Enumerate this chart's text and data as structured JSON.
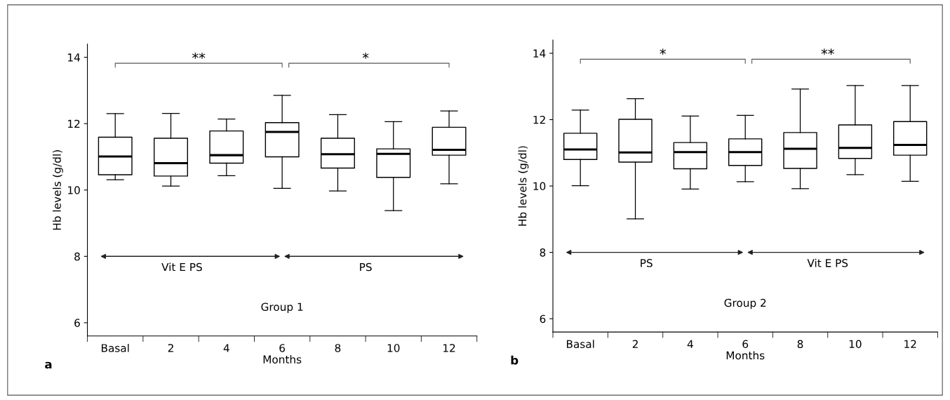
{
  "chart_data": [
    {
      "type": "box",
      "xlabel": "Months",
      "ylabel": "Hb levels (g/dl)",
      "categories": [
        "Basal",
        "2",
        "4",
        "6",
        "8",
        "10",
        "12"
      ],
      "ylim": [
        5.6,
        14.4
      ],
      "yticks": [
        6,
        8,
        10,
        12,
        14
      ],
      "grid": false,
      "boxes": [
        {
          "low": 10.31,
          "q1": 10.46,
          "median": 11.01,
          "q3": 11.59,
          "high": 12.3
        },
        {
          "low": 10.12,
          "q1": 10.42,
          "median": 10.81,
          "q3": 11.56,
          "high": 12.31
        },
        {
          "low": 10.43,
          "q1": 10.81,
          "median": 11.05,
          "q3": 11.78,
          "high": 12.14
        },
        {
          "low": 10.05,
          "q1": 11.0,
          "median": 11.75,
          "q3": 12.03,
          "high": 12.85
        },
        {
          "low": 9.97,
          "q1": 10.66,
          "median": 11.08,
          "q3": 11.56,
          "high": 12.27
        },
        {
          "low": 9.38,
          "q1": 10.38,
          "median": 11.09,
          "q3": 11.24,
          "high": 12.06
        },
        {
          "low": 10.19,
          "q1": 11.05,
          "median": 11.21,
          "q3": 11.89,
          "high": 12.38
        }
      ],
      "annotations": [
        "**",
        "*",
        "Vit E PS",
        "PS",
        "Group 1",
        "a"
      ]
    },
    {
      "type": "box",
      "xlabel": "Months",
      "ylabel": "Hb levels (g/dl)",
      "categories": [
        "Basal",
        "2",
        "4",
        "6",
        "8",
        "10",
        "12"
      ],
      "ylim": [
        5.6,
        14.4
      ],
      "yticks": [
        6,
        8,
        10,
        12,
        14
      ],
      "grid": false,
      "boxes": [
        {
          "low": 10.01,
          "q1": 10.8,
          "median": 11.1,
          "q3": 11.59,
          "high": 12.29
        },
        {
          "low": 9.01,
          "q1": 10.72,
          "median": 11.01,
          "q3": 12.01,
          "high": 12.63
        },
        {
          "low": 9.91,
          "q1": 10.52,
          "median": 11.02,
          "q3": 11.31,
          "high": 12.11
        },
        {
          "low": 10.13,
          "q1": 10.62,
          "median": 11.02,
          "q3": 11.42,
          "high": 12.13
        },
        {
          "low": 9.92,
          "q1": 10.53,
          "median": 11.12,
          "q3": 11.61,
          "high": 12.92
        },
        {
          "low": 10.34,
          "q1": 10.83,
          "median": 11.15,
          "q3": 11.84,
          "high": 13.03
        },
        {
          "low": 10.14,
          "q1": 10.93,
          "median": 11.24,
          "q3": 11.94,
          "high": 13.03
        }
      ],
      "annotations": [
        "*",
        "**",
        "PS",
        "Vit E PS",
        "Group 2",
        "b"
      ]
    }
  ]
}
